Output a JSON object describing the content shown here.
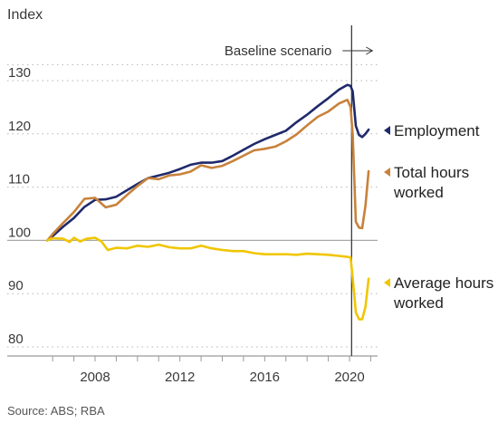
{
  "chart_data": {
    "type": "line",
    "ylabel": "Index",
    "ylim": [
      80,
      133
    ],
    "xlim": [
      2005.5,
      2021.0
    ],
    "y_ticks": [
      80,
      90,
      100,
      110,
      120,
      130
    ],
    "x_ticks": [
      2008,
      2012,
      2016,
      2020
    ],
    "baseline": 100,
    "grid": "horizontal dotted",
    "vline": {
      "x": 2020.1,
      "label": "Baseline scenario"
    },
    "source": "Source: ABS; RBA",
    "series": [
      {
        "name": "Employment",
        "color": "#1f2a6b",
        "x": [
          2005.75,
          2006.0,
          2006.5,
          2007.0,
          2007.5,
          2008.0,
          2008.5,
          2009.0,
          2009.5,
          2010.0,
          2010.5,
          2011.0,
          2011.5,
          2012.0,
          2012.5,
          2013.0,
          2013.5,
          2014.0,
          2014.5,
          2015.0,
          2015.5,
          2016.0,
          2016.5,
          2017.0,
          2017.5,
          2018.0,
          2018.5,
          2019.0,
          2019.5,
          2019.9,
          2020.05,
          2020.15,
          2020.3,
          2020.45,
          2020.6,
          2020.75,
          2020.9
        ],
        "values": [
          100.0,
          100.8,
          102.6,
          104.2,
          106.3,
          107.6,
          107.7,
          108.2,
          109.4,
          110.6,
          111.7,
          112.2,
          112.7,
          113.4,
          114.2,
          114.6,
          114.6,
          114.9,
          115.9,
          117.0,
          118.1,
          119.0,
          119.8,
          120.6,
          122.2,
          123.6,
          125.2,
          126.7,
          128.3,
          129.2,
          129.0,
          128.0,
          121.5,
          119.8,
          119.4,
          120.0,
          120.8
        ]
      },
      {
        "name": "Total hours worked",
        "color": "#c8823b",
        "x": [
          2005.75,
          2006.0,
          2006.5,
          2007.0,
          2007.5,
          2008.0,
          2008.5,
          2009.0,
          2009.5,
          2010.0,
          2010.5,
          2011.0,
          2011.5,
          2012.0,
          2012.5,
          2013.0,
          2013.5,
          2014.0,
          2014.5,
          2015.0,
          2015.5,
          2016.0,
          2016.5,
          2017.0,
          2017.5,
          2018.0,
          2018.5,
          2019.0,
          2019.5,
          2019.9,
          2020.05,
          2020.15,
          2020.3,
          2020.45,
          2020.6,
          2020.75,
          2020.9
        ],
        "values": [
          100.0,
          101.2,
          103.3,
          105.3,
          107.8,
          108.0,
          106.2,
          106.7,
          108.5,
          110.2,
          111.7,
          111.5,
          112.2,
          112.4,
          112.9,
          114.1,
          113.6,
          114.0,
          114.9,
          115.9,
          116.9,
          117.2,
          117.6,
          118.6,
          119.9,
          121.6,
          123.2,
          124.2,
          125.7,
          126.4,
          125.0,
          120.0,
          103.5,
          102.4,
          102.3,
          106.5,
          113.0
        ]
      },
      {
        "name": "Average hours worked",
        "color": "#f0c600",
        "x": [
          2005.75,
          2006.0,
          2006.5,
          2006.8,
          2007.0,
          2007.3,
          2007.6,
          2008.0,
          2008.3,
          2008.6,
          2009.0,
          2009.5,
          2010.0,
          2010.5,
          2011.0,
          2011.5,
          2012.0,
          2012.5,
          2013.0,
          2013.5,
          2014.0,
          2014.5,
          2015.0,
          2015.5,
          2016.0,
          2016.5,
          2017.0,
          2017.5,
          2018.0,
          2018.5,
          2019.0,
          2019.5,
          2019.9,
          2020.05,
          2020.15,
          2020.3,
          2020.45,
          2020.6,
          2020.75,
          2020.9
        ],
        "values": [
          100.0,
          100.4,
          100.3,
          99.7,
          100.5,
          99.8,
          100.3,
          100.5,
          99.8,
          98.2,
          98.6,
          98.5,
          99.0,
          98.8,
          99.2,
          98.7,
          98.5,
          98.5,
          99.0,
          98.5,
          98.2,
          98.0,
          98.0,
          97.6,
          97.4,
          97.4,
          97.4,
          97.3,
          97.5,
          97.4,
          97.3,
          97.1,
          96.9,
          96.8,
          93.0,
          86.5,
          85.2,
          85.2,
          87.5,
          92.8
        ]
      }
    ]
  }
}
